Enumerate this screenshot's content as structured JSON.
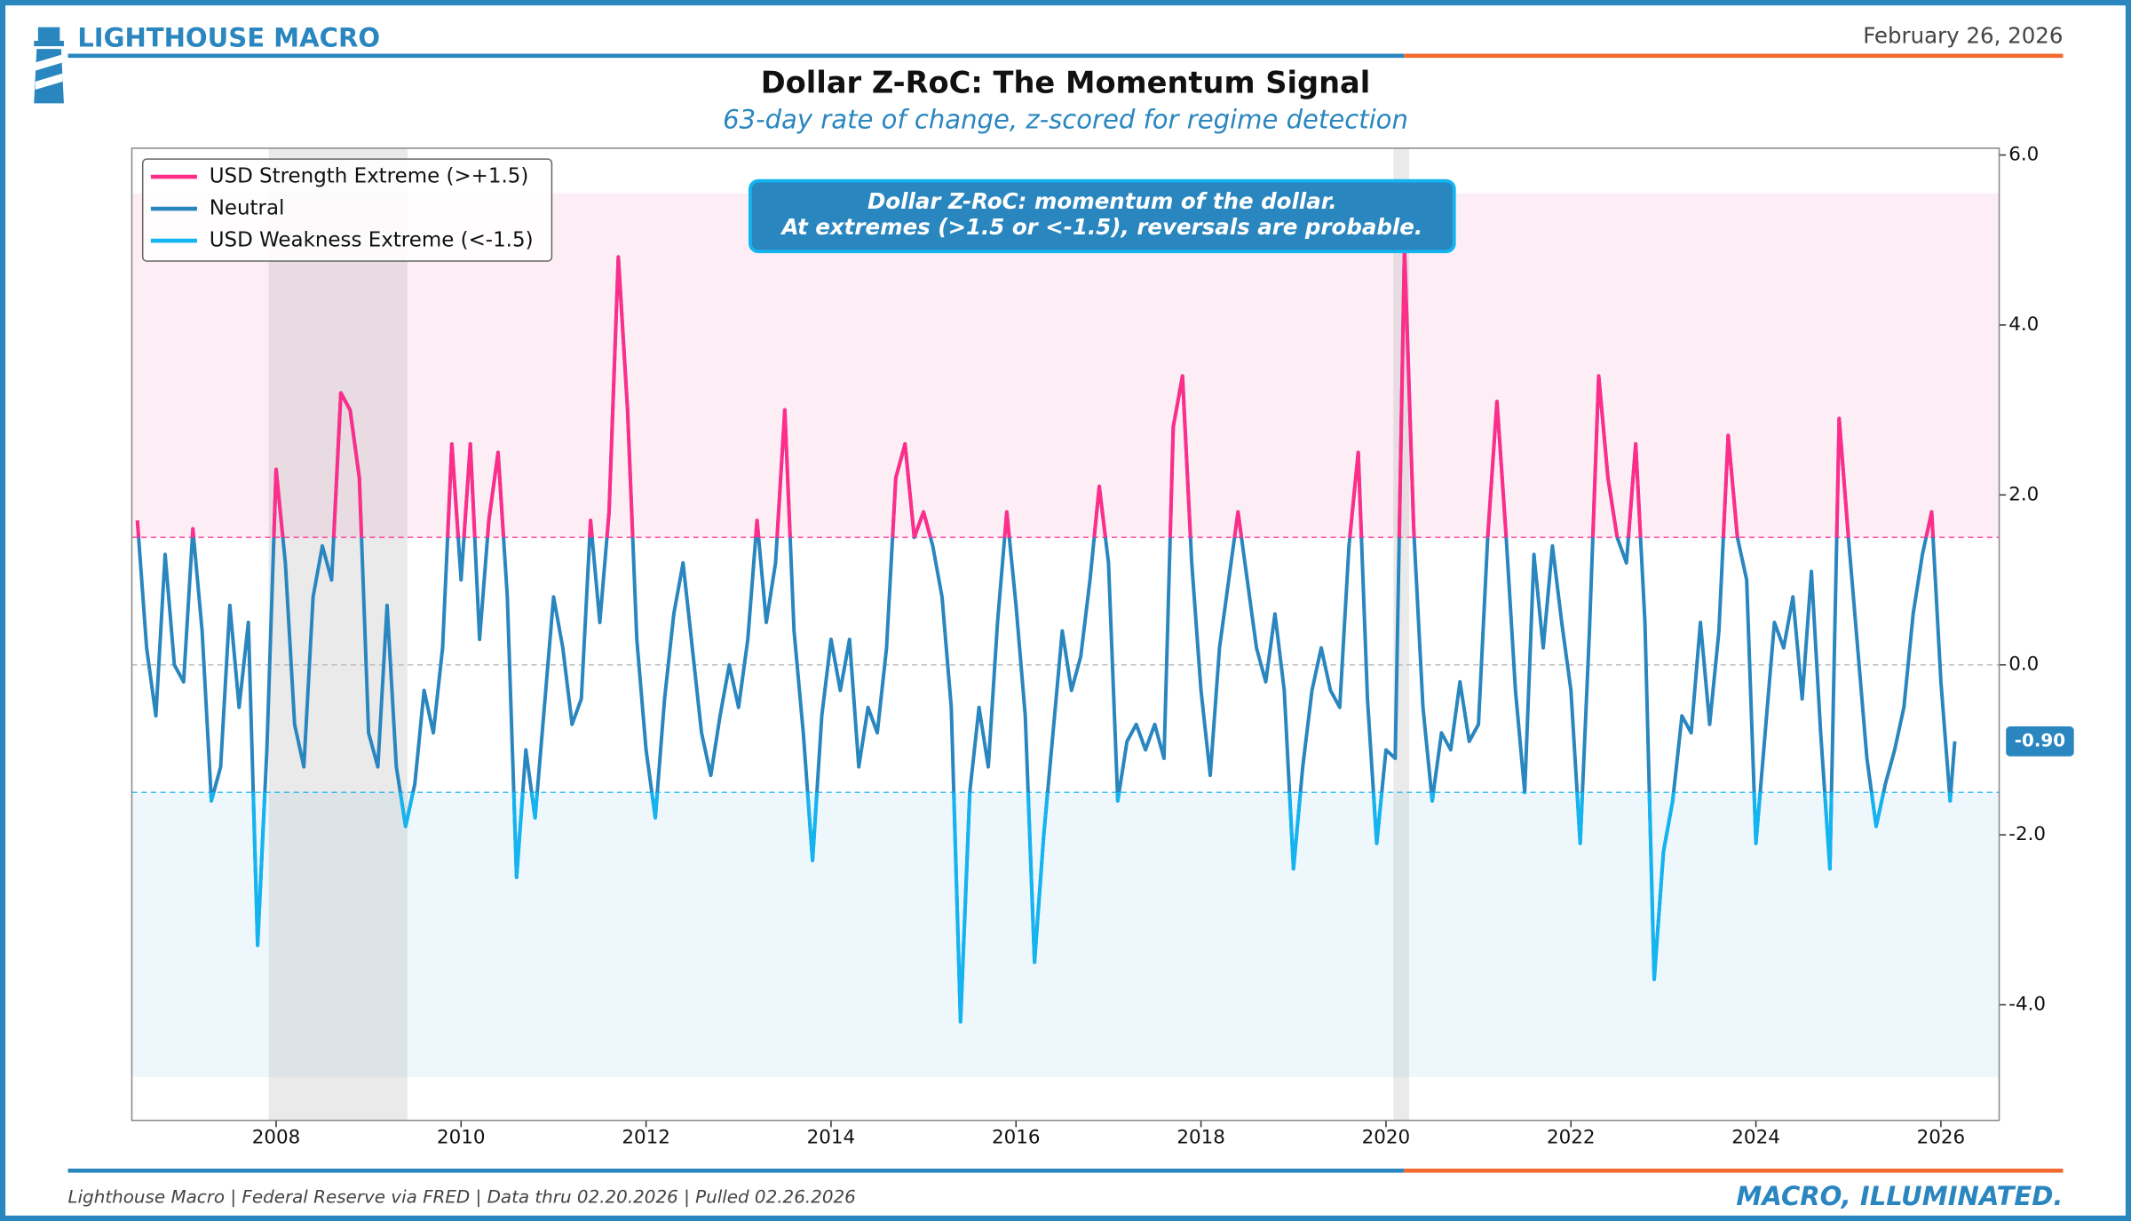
{
  "header": {
    "brand": "LIGHTHOUSE MACRO",
    "date": "February 26, 2026"
  },
  "chart_data": {
    "type": "line",
    "title": "Dollar Z-RoC: The Momentum Signal",
    "subtitle": "63-day rate of change, z-scored for regime detection",
    "annotation": [
      "Dollar Z-RoC: momentum of the dollar.",
      "At extremes (>1.5 or <-1.5), reversals are probable."
    ],
    "x": [
      2006.5,
      2006.6,
      2006.7,
      2006.8,
      2006.9,
      2007.0,
      2007.1,
      2007.2,
      2007.3,
      2007.4,
      2007.5,
      2007.6,
      2007.7,
      2007.8,
      2007.9,
      2008.0,
      2008.1,
      2008.2,
      2008.3,
      2008.4,
      2008.5,
      2008.6,
      2008.7,
      2008.8,
      2008.9,
      2009.0,
      2009.1,
      2009.2,
      2009.3,
      2009.4,
      2009.5,
      2009.6,
      2009.7,
      2009.8,
      2009.9,
      2010.0,
      2010.1,
      2010.2,
      2010.3,
      2010.4,
      2010.5,
      2010.6,
      2010.7,
      2010.8,
      2010.9,
      2011.0,
      2011.1,
      2011.2,
      2011.3,
      2011.4,
      2011.5,
      2011.6,
      2011.7,
      2011.8,
      2011.9,
      2012.0,
      2012.1,
      2012.2,
      2012.3,
      2012.4,
      2012.5,
      2012.6,
      2012.7,
      2012.8,
      2012.9,
      2013.0,
      2013.1,
      2013.2,
      2013.3,
      2013.4,
      2013.5,
      2013.6,
      2013.7,
      2013.8,
      2013.9,
      2014.0,
      2014.1,
      2014.2,
      2014.3,
      2014.4,
      2014.5,
      2014.6,
      2014.7,
      2014.8,
      2014.9,
      2015.0,
      2015.1,
      2015.2,
      2015.3,
      2015.4,
      2015.5,
      2015.6,
      2015.7,
      2015.8,
      2015.9,
      2016.0,
      2016.1,
      2016.2,
      2016.3,
      2016.4,
      2016.5,
      2016.6,
      2016.7,
      2016.8,
      2016.9,
      2017.0,
      2017.1,
      2017.2,
      2017.3,
      2017.4,
      2017.5,
      2017.6,
      2017.7,
      2017.8,
      2017.9,
      2018.0,
      2018.1,
      2018.2,
      2018.3,
      2018.4,
      2018.5,
      2018.6,
      2018.7,
      2018.8,
      2018.9,
      2019.0,
      2019.1,
      2019.2,
      2019.3,
      2019.4,
      2019.5,
      2019.6,
      2019.7,
      2019.8,
      2019.9,
      2020.0,
      2020.1,
      2020.2,
      2020.3,
      2020.4,
      2020.5,
      2020.6,
      2020.7,
      2020.8,
      2020.9,
      2021.0,
      2021.1,
      2021.2,
      2021.3,
      2021.4,
      2021.5,
      2021.6,
      2021.7,
      2021.8,
      2021.9,
      2022.0,
      2022.1,
      2022.2,
      2022.3,
      2022.4,
      2022.5,
      2022.6,
      2022.7,
      2022.8,
      2022.9,
      2023.0,
      2023.1,
      2023.2,
      2023.3,
      2023.4,
      2023.5,
      2023.6,
      2023.7,
      2023.8,
      2023.9,
      2024.0,
      2024.1,
      2024.2,
      2024.3,
      2024.4,
      2024.5,
      2024.6,
      2024.7,
      2024.8,
      2024.9,
      2025.0,
      2025.1,
      2025.2,
      2025.3,
      2025.4,
      2025.5,
      2025.6,
      2025.7,
      2025.8,
      2025.9,
      2026.0,
      2026.1,
      2026.15
    ],
    "series": [
      {
        "values": [
          1.7,
          0.2,
          -0.6,
          1.3,
          0.0,
          -0.2,
          1.6,
          0.4,
          -1.6,
          -1.2,
          0.7,
          -0.5,
          0.5,
          -3.3,
          -1.0,
          2.3,
          1.2,
          -0.7,
          -1.2,
          0.8,
          1.4,
          1.0,
          3.2,
          3.0,
          2.2,
          -0.8,
          -1.2,
          0.7,
          -1.2,
          -1.9,
          -1.4,
          -0.3,
          -0.8,
          0.2,
          2.6,
          1.0,
          2.6,
          0.3,
          1.7,
          2.5,
          0.8,
          -2.5,
          -1.0,
          -1.8,
          -0.5,
          0.8,
          0.2,
          -0.7,
          -0.4,
          1.7,
          0.5,
          1.8,
          4.8,
          3.0,
          0.3,
          -1.0,
          -1.8,
          -0.4,
          0.6,
          1.2,
          0.2,
          -0.8,
          -1.3,
          -0.6,
          0.0,
          -0.5,
          0.3,
          1.7,
          0.5,
          1.2,
          3.0,
          0.4,
          -0.8,
          -2.3,
          -0.6,
          0.3,
          -0.3,
          0.3,
          -1.2,
          -0.5,
          -0.8,
          0.2,
          2.2,
          2.6,
          1.5,
          1.8,
          1.4,
          0.8,
          -0.5,
          -4.2,
          -1.5,
          -0.5,
          -1.2,
          0.5,
          1.8,
          0.7,
          -0.6,
          -3.5,
          -2.0,
          -0.8,
          0.4,
          -0.3,
          0.1,
          1.0,
          2.1,
          1.2,
          -1.6,
          -0.9,
          -0.7,
          -1.0,
          -0.7,
          -1.1,
          2.8,
          3.4,
          1.2,
          -0.3,
          -1.3,
          0.2,
          1.0,
          1.8,
          1.0,
          0.2,
          -0.2,
          0.6,
          -0.3,
          -2.4,
          -1.2,
          -0.3,
          0.2,
          -0.3,
          -0.5,
          1.4,
          2.5,
          -0.4,
          -2.1,
          -1.0,
          -1.1,
          4.9,
          1.6,
          -0.5,
          -1.6,
          -0.8,
          -1.0,
          -0.2,
          -0.9,
          -0.7,
          1.5,
          3.1,
          1.5,
          -0.3,
          -1.5,
          1.3,
          0.2,
          1.4,
          0.5,
          -0.3,
          -2.1,
          0.4,
          3.4,
          2.2,
          1.5,
          1.2,
          2.6,
          0.5,
          -3.7,
          -2.2,
          -1.6,
          -0.6,
          -0.8,
          0.5,
          -0.7,
          0.4,
          2.7,
          1.5,
          1.0,
          -2.1,
          -0.8,
          0.5,
          0.2,
          0.8,
          -0.4,
          1.1,
          -0.8,
          -2.4,
          2.9,
          1.5,
          0.2,
          -1.1,
          -1.9,
          -1.4,
          -1.0,
          -0.5,
          0.6,
          1.3,
          1.8,
          -0.2,
          -1.6,
          -0.9
        ]
      }
    ],
    "regimes": [
      {
        "name": "USD Strength Extreme (>+1.5)",
        "color": "#ff2d8a",
        "threshold": 1.5,
        "band": [
          1.5,
          5.55
        ],
        "band_color": "#fdeef6"
      },
      {
        "name": "Neutral",
        "color": "#2a86bf"
      },
      {
        "name": "USD Weakness Extreme (<-1.5)",
        "color": "#14b4f0",
        "threshold": -1.5,
        "band": [
          -4.85,
          -1.5
        ],
        "band_color": "#eef8fc"
      }
    ],
    "shaded_periods": [
      [
        2007.92,
        2009.42
      ],
      [
        2020.08,
        2020.25
      ]
    ],
    "hlines": [
      0
    ],
    "last_value_label": "-0.90",
    "xlim": [
      2006.44,
      2026.63
    ],
    "xticks": [
      2008,
      2010,
      2012,
      2014,
      2016,
      2018,
      2020,
      2022,
      2024,
      2026
    ],
    "ylim": [
      -5.36,
      6.08
    ],
    "yticks": [
      {
        "value": -4,
        "label": "-4.0"
      },
      {
        "value": -2,
        "label": "-2.0"
      },
      {
        "value": 0,
        "label": "0.0"
      },
      {
        "value": 2,
        "label": "2.0"
      },
      {
        "value": 4,
        "label": "4.0"
      },
      {
        "value": 6,
        "label": "6.0"
      }
    ],
    "y_axis_side": "right"
  },
  "footer": {
    "source": "Lighthouse Macro | Federal Reserve via FRED | Data thru 02.20.2026 | Pulled 02.26.2026",
    "tagline": "MACRO, ILLUMINATED."
  }
}
